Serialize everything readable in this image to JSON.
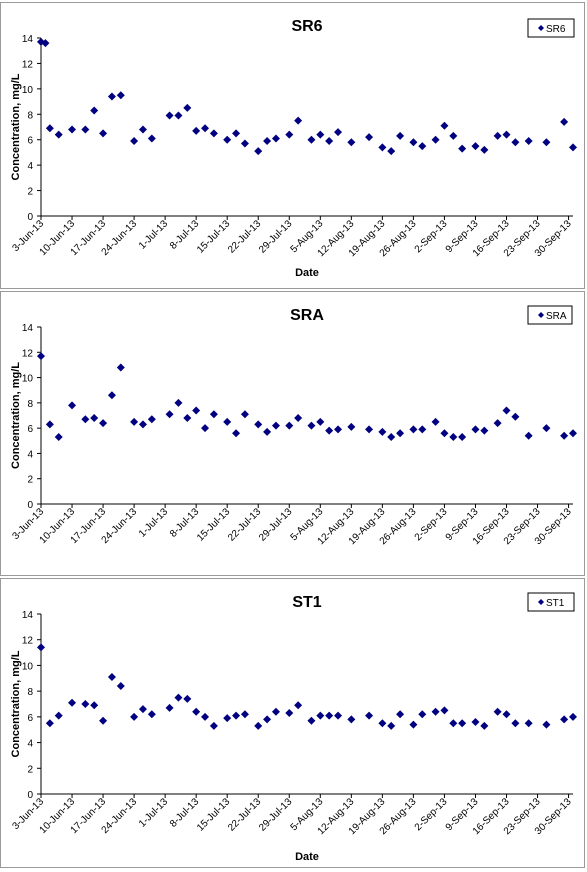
{
  "charts": [
    {
      "type": "scatter",
      "title": "SR6",
      "legend": "SR6",
      "legend_position": "top-right",
      "xlabel": "Date",
      "ylabel": "Concentration, mg/L",
      "ylim": [
        0,
        14
      ],
      "yticks": [
        0,
        2,
        4,
        6,
        8,
        10,
        12,
        14
      ],
      "xlim": [
        "2013-06-03",
        "2013-10-01"
      ],
      "xticks": [
        "3-Jun-13",
        "10-Jun-13",
        "17-Jun-13",
        "24-Jun-13",
        "1-Jul-13",
        "8-Jul-13",
        "15-Jul-13",
        "22-Jul-13",
        "29-Jul-13",
        "5-Aug-13",
        "12-Aug-13",
        "19-Aug-13",
        "26-Aug-13",
        "2-Sep-13",
        "9-Sep-13",
        "16-Sep-13",
        "23-Sep-13",
        "30-Sep-13"
      ],
      "grid": false,
      "marker_color": "#000080",
      "points": [
        [
          "2013-06-03",
          13.7
        ],
        [
          "2013-06-04",
          13.6
        ],
        [
          "2013-06-05",
          6.9
        ],
        [
          "2013-06-07",
          6.4
        ],
        [
          "2013-06-10",
          6.8
        ],
        [
          "2013-06-13",
          6.8
        ],
        [
          "2013-06-15",
          8.3
        ],
        [
          "2013-06-17",
          6.5
        ],
        [
          "2013-06-19",
          9.4
        ],
        [
          "2013-06-21",
          9.5
        ],
        [
          "2013-06-24",
          5.9
        ],
        [
          "2013-06-26",
          6.8
        ],
        [
          "2013-06-28",
          6.1
        ],
        [
          "2013-07-02",
          7.9
        ],
        [
          "2013-07-04",
          7.9
        ],
        [
          "2013-07-06",
          8.5
        ],
        [
          "2013-07-08",
          6.7
        ],
        [
          "2013-07-10",
          6.9
        ],
        [
          "2013-07-12",
          6.5
        ],
        [
          "2013-07-15",
          6.0
        ],
        [
          "2013-07-17",
          6.5
        ],
        [
          "2013-07-19",
          5.7
        ],
        [
          "2013-07-22",
          5.1
        ],
        [
          "2013-07-24",
          5.9
        ],
        [
          "2013-07-26",
          6.1
        ],
        [
          "2013-07-29",
          6.4
        ],
        [
          "2013-07-31",
          7.5
        ],
        [
          "2013-08-03",
          6.0
        ],
        [
          "2013-08-05",
          6.4
        ],
        [
          "2013-08-07",
          5.9
        ],
        [
          "2013-08-09",
          6.6
        ],
        [
          "2013-08-12",
          5.8
        ],
        [
          "2013-08-16",
          6.2
        ],
        [
          "2013-08-19",
          5.4
        ],
        [
          "2013-08-21",
          5.1
        ],
        [
          "2013-08-23",
          6.3
        ],
        [
          "2013-08-26",
          5.8
        ],
        [
          "2013-08-28",
          5.5
        ],
        [
          "2013-08-31",
          6.0
        ],
        [
          "2013-09-02",
          7.1
        ],
        [
          "2013-09-04",
          6.3
        ],
        [
          "2013-09-06",
          5.3
        ],
        [
          "2013-09-09",
          5.5
        ],
        [
          "2013-09-11",
          5.2
        ],
        [
          "2013-09-14",
          6.3
        ],
        [
          "2013-09-16",
          6.4
        ],
        [
          "2013-09-18",
          5.8
        ],
        [
          "2013-09-21",
          5.9
        ],
        [
          "2013-09-25",
          5.8
        ],
        [
          "2013-09-29",
          7.4
        ],
        [
          "2013-10-01",
          5.4
        ]
      ]
    },
    {
      "type": "scatter",
      "title": "SRA",
      "legend": "SRA",
      "legend_position": "top-right",
      "xlabel": "",
      "ylabel": "Concentration, mg/L",
      "ylim": [
        0,
        14
      ],
      "yticks": [
        0,
        2,
        4,
        6,
        8,
        10,
        12,
        14
      ],
      "xlim": [
        "2013-06-03",
        "2013-10-01"
      ],
      "xticks": [
        "3-Jun-13",
        "10-Jun-13",
        "17-Jun-13",
        "24-Jun-13",
        "1-Jul-13",
        "8-Jul-13",
        "15-Jul-13",
        "22-Jul-13",
        "29-Jul-13",
        "5-Aug-13",
        "12-Aug-13",
        "19-Aug-13",
        "26-Aug-13",
        "2-Sep-13",
        "9-Sep-13",
        "16-Sep-13",
        "23-Sep-13",
        "30-Sep-13"
      ],
      "grid": false,
      "marker_color": "#000080",
      "points": [
        [
          "2013-06-03",
          11.7
        ],
        [
          "2013-06-05",
          6.3
        ],
        [
          "2013-06-07",
          5.3
        ],
        [
          "2013-06-10",
          7.8
        ],
        [
          "2013-06-13",
          6.7
        ],
        [
          "2013-06-15",
          6.8
        ],
        [
          "2013-06-17",
          6.4
        ],
        [
          "2013-06-19",
          8.6
        ],
        [
          "2013-06-21",
          10.8
        ],
        [
          "2013-06-24",
          6.5
        ],
        [
          "2013-06-26",
          6.3
        ],
        [
          "2013-06-28",
          6.7
        ],
        [
          "2013-07-02",
          7.1
        ],
        [
          "2013-07-04",
          8.0
        ],
        [
          "2013-07-06",
          6.8
        ],
        [
          "2013-07-08",
          7.4
        ],
        [
          "2013-07-10",
          6.0
        ],
        [
          "2013-07-12",
          7.1
        ],
        [
          "2013-07-15",
          6.5
        ],
        [
          "2013-07-17",
          5.6
        ],
        [
          "2013-07-19",
          7.1
        ],
        [
          "2013-07-22",
          6.3
        ],
        [
          "2013-07-24",
          5.7
        ],
        [
          "2013-07-26",
          6.2
        ],
        [
          "2013-07-29",
          6.2
        ],
        [
          "2013-07-31",
          6.8
        ],
        [
          "2013-08-03",
          6.2
        ],
        [
          "2013-08-05",
          6.5
        ],
        [
          "2013-08-07",
          5.8
        ],
        [
          "2013-08-09",
          5.9
        ],
        [
          "2013-08-12",
          6.1
        ],
        [
          "2013-08-16",
          5.9
        ],
        [
          "2013-08-19",
          5.7
        ],
        [
          "2013-08-21",
          5.3
        ],
        [
          "2013-08-23",
          5.6
        ],
        [
          "2013-08-26",
          5.9
        ],
        [
          "2013-08-28",
          5.9
        ],
        [
          "2013-08-31",
          6.5
        ],
        [
          "2013-09-02",
          5.6
        ],
        [
          "2013-09-04",
          5.3
        ],
        [
          "2013-09-06",
          5.3
        ],
        [
          "2013-09-09",
          5.9
        ],
        [
          "2013-09-11",
          5.8
        ],
        [
          "2013-09-14",
          6.4
        ],
        [
          "2013-09-16",
          7.4
        ],
        [
          "2013-09-18",
          6.9
        ],
        [
          "2013-09-21",
          5.4
        ],
        [
          "2013-09-25",
          6.0
        ],
        [
          "2013-09-29",
          5.4
        ],
        [
          "2013-10-01",
          5.6
        ]
      ]
    },
    {
      "type": "scatter",
      "title": "ST1",
      "legend": "ST1",
      "legend_position": "top-right",
      "xlabel": "Date",
      "ylabel": "Concentration, mg/L",
      "ylim": [
        0,
        14
      ],
      "yticks": [
        0,
        2,
        4,
        6,
        8,
        10,
        12,
        14
      ],
      "xlim": [
        "2013-06-03",
        "2013-10-01"
      ],
      "xticks": [
        "3-Jun-13",
        "10-Jun-13",
        "17-Jun-13",
        "24-Jun-13",
        "1-Jul-13",
        "8-Jul-13",
        "15-Jul-13",
        "22-Jul-13",
        "29-Jul-13",
        "5-Aug-13",
        "12-Aug-13",
        "19-Aug-13",
        "26-Aug-13",
        "2-Sep-13",
        "9-Sep-13",
        "16-Sep-13",
        "23-Sep-13",
        "30-Sep-13"
      ],
      "grid": false,
      "marker_color": "#000080",
      "points": [
        [
          "2013-06-03",
          11.4
        ],
        [
          "2013-06-05",
          5.5
        ],
        [
          "2013-06-07",
          6.1
        ],
        [
          "2013-06-10",
          7.1
        ],
        [
          "2013-06-13",
          7.0
        ],
        [
          "2013-06-15",
          6.9
        ],
        [
          "2013-06-17",
          5.7
        ],
        [
          "2013-06-19",
          9.1
        ],
        [
          "2013-06-21",
          8.4
        ],
        [
          "2013-06-24",
          6.0
        ],
        [
          "2013-06-26",
          6.6
        ],
        [
          "2013-06-28",
          6.2
        ],
        [
          "2013-07-02",
          6.7
        ],
        [
          "2013-07-04",
          7.5
        ],
        [
          "2013-07-06",
          7.4
        ],
        [
          "2013-07-08",
          6.4
        ],
        [
          "2013-07-10",
          6.0
        ],
        [
          "2013-07-12",
          5.3
        ],
        [
          "2013-07-15",
          5.9
        ],
        [
          "2013-07-17",
          6.1
        ],
        [
          "2013-07-19",
          6.2
        ],
        [
          "2013-07-22",
          5.3
        ],
        [
          "2013-07-24",
          5.8
        ],
        [
          "2013-07-26",
          6.4
        ],
        [
          "2013-07-29",
          6.3
        ],
        [
          "2013-07-31",
          6.9
        ],
        [
          "2013-08-03",
          5.7
        ],
        [
          "2013-08-05",
          6.1
        ],
        [
          "2013-08-07",
          6.1
        ],
        [
          "2013-08-09",
          6.1
        ],
        [
          "2013-08-12",
          5.8
        ],
        [
          "2013-08-16",
          6.1
        ],
        [
          "2013-08-19",
          5.5
        ],
        [
          "2013-08-21",
          5.3
        ],
        [
          "2013-08-23",
          6.2
        ],
        [
          "2013-08-26",
          5.4
        ],
        [
          "2013-08-28",
          6.2
        ],
        [
          "2013-08-31",
          6.4
        ],
        [
          "2013-09-02",
          6.5
        ],
        [
          "2013-09-04",
          5.5
        ],
        [
          "2013-09-06",
          5.5
        ],
        [
          "2013-09-09",
          5.6
        ],
        [
          "2013-09-11",
          5.3
        ],
        [
          "2013-09-14",
          6.4
        ],
        [
          "2013-09-16",
          6.2
        ],
        [
          "2013-09-18",
          5.5
        ],
        [
          "2013-09-21",
          5.5
        ],
        [
          "2013-09-25",
          5.4
        ],
        [
          "2013-09-29",
          5.8
        ],
        [
          "2013-10-01",
          6.0
        ]
      ]
    }
  ]
}
